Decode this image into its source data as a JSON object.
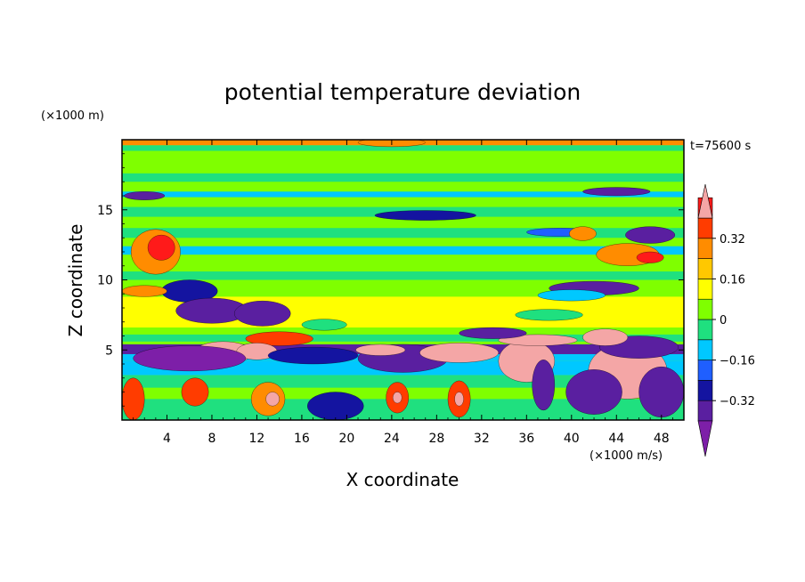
{
  "chart_data": {
    "type": "heatmap",
    "title": "potential temperature deviation",
    "xlabel": "X coordinate",
    "ylabel": "Z coordinate",
    "x_unit": "(×1000 m/s)",
    "y_unit": "(×1000 m)",
    "time_label": "t=75600 s",
    "xlim": [
      0,
      50
    ],
    "ylim": [
      0,
      20
    ],
    "x_ticks": [
      4,
      8,
      12,
      16,
      20,
      24,
      28,
      32,
      36,
      40,
      44,
      48
    ],
    "y_ticks": [
      5,
      10,
      15
    ],
    "colorbar": {
      "ticks": [
        0.32,
        0.16,
        0,
        -0.16,
        -0.32
      ],
      "tick_labels": [
        "0.32",
        "0.16",
        "0",
        "−0.16",
        "−0.32"
      ],
      "levels": [
        -0.48,
        -0.4,
        -0.32,
        -0.24,
        -0.16,
        -0.08,
        0,
        0.08,
        0.16,
        0.24,
        0.32,
        0.4,
        0.48
      ],
      "colors": [
        "#7d1fa8",
        "#5a1fa0",
        "#1414a0",
        "#1f5fff",
        "#00c8ff",
        "#1fe07f",
        "#7fff00",
        "#ffff00",
        "#ffc800",
        "#ff8c00",
        "#ff3c00",
        "#ff1a1a",
        "#f4a6a6"
      ],
      "extend": "both"
    }
  }
}
